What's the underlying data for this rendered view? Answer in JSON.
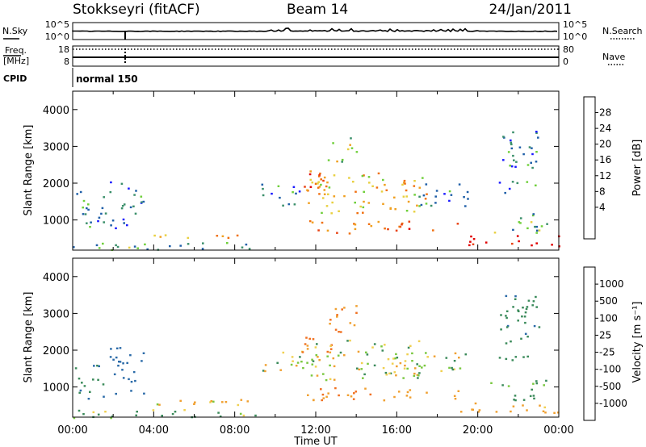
{
  "header": {
    "station": "Stokkseyri (fitACF)",
    "beam": "Beam 14",
    "date": "24/Jan/2011"
  },
  "panel_labels": {
    "nsky": "N.Sky",
    "nsearch": "N.Search",
    "freq_line1": "Freq.",
    "freq_line2": "[MHz]",
    "nave": "Nave",
    "cpid": "CPID",
    "cpid_value": "normal 150"
  },
  "noise_axis": {
    "left_ticks": [
      "10^5",
      "10^0"
    ],
    "right_ticks": [
      "10^5",
      "10^0"
    ]
  },
  "freq_axis": {
    "left_ticks": [
      "18",
      "8"
    ],
    "right_ticks": [
      "80",
      "0"
    ]
  },
  "x_axis": {
    "label": "Time UT",
    "ticks": [
      "00:00",
      "04:00",
      "08:00",
      "12:00",
      "16:00",
      "20:00",
      "00:00"
    ]
  },
  "y_axis": {
    "label": "Slant Range [km]",
    "ticks": [
      "1000",
      "2000",
      "3000",
      "4000"
    ]
  },
  "power_scale": {
    "label": "Power [dB]",
    "ticks": [
      "4",
      "8",
      "12",
      "16",
      "20",
      "24",
      "28"
    ],
    "colors": [
      "#1a1aff",
      "#1f5fa8",
      "#3a8f6a",
      "#6fcf3a",
      "#e8d040",
      "#f0a020",
      "#f07010",
      "#e84010",
      "#e00000"
    ]
  },
  "velocity_scale": {
    "label": "Velocity [m s⁻¹]",
    "ticks": [
      "1000",
      "500",
      "100",
      "25",
      "-25",
      "-100",
      "-500",
      "-1000"
    ],
    "colors": [
      "#1a3a9a",
      "#2a6aa8",
      "#3a8a5a",
      "#7ac840",
      "#c8c8c8",
      "#f0d050",
      "#f0a030",
      "#f07020",
      "#e00000"
    ]
  },
  "chart_data": [
    {
      "type": "heatmap",
      "title": "Power",
      "xlabel": "Time UT",
      "ylabel": "Slant Range [km]",
      "xlim": [
        "00:00",
        "24:00"
      ],
      "ylim": [
        180,
        4500
      ],
      "colorbar": {
        "label": "Power [dB]",
        "range": [
          0,
          30
        ]
      },
      "regions": [
        {
          "t": [
            0.1,
            1.6
          ],
          "r": [
            700,
            1800
          ],
          "value": 8
        },
        {
          "t": [
            1.8,
            3.5
          ],
          "r": [
            800,
            2100
          ],
          "value": 6
        },
        {
          "t": [
            0.0,
            9.0
          ],
          "r": [
            180,
            400
          ],
          "value": 10
        },
        {
          "t": [
            4.0,
            9.0
          ],
          "r": [
            520,
            700
          ],
          "value": 18
        },
        {
          "t": [
            9.3,
            11.4
          ],
          "r": [
            1400,
            2000
          ],
          "value": 7
        },
        {
          "t": [
            11.2,
            12.8
          ],
          "r": [
            1700,
            2400
          ],
          "value": 24
        },
        {
          "t": [
            11.5,
            17.5
          ],
          "r": [
            1200,
            2300
          ],
          "value": 17
        },
        {
          "t": [
            12.5,
            14.0
          ],
          "r": [
            2500,
            3300
          ],
          "value": 12
        },
        {
          "t": [
            11.5,
            16.5
          ],
          "r": [
            650,
            1000
          ],
          "value": 22
        },
        {
          "t": [
            16.0,
            19.0
          ],
          "r": [
            700,
            1000
          ],
          "value": 24
        },
        {
          "t": [
            17.0,
            19.5
          ],
          "r": [
            1400,
            2000
          ],
          "value": 6
        },
        {
          "t": [
            19.0,
            24.0
          ],
          "r": [
            300,
            600
          ],
          "value": 28
        },
        {
          "t": [
            20.5,
            23.5
          ],
          "r": [
            650,
            1200
          ],
          "value": 10
        },
        {
          "t": [
            21.0,
            23.0
          ],
          "r": [
            1700,
            3500
          ],
          "value": 6
        }
      ]
    },
    {
      "type": "heatmap",
      "title": "Velocity",
      "xlabel": "Time UT",
      "ylabel": "Slant Range [km]",
      "xlim": [
        "00:00",
        "24:00"
      ],
      "ylim": [
        180,
        4500
      ],
      "colorbar": {
        "label": "Velocity [m s⁻¹]",
        "range": [
          -1000,
          1000
        ]
      },
      "regions": [
        {
          "t": [
            0.1,
            1.6
          ],
          "r": [
            700,
            1800
          ],
          "value": 300
        },
        {
          "t": [
            1.8,
            3.5
          ],
          "r": [
            800,
            2100
          ],
          "value": 500
        },
        {
          "t": [
            0.0,
            9.0
          ],
          "r": [
            180,
            400
          ],
          "value": 60
        },
        {
          "t": [
            4.0,
            9.0
          ],
          "r": [
            520,
            700
          ],
          "value": -80
        },
        {
          "t": [
            9.3,
            11.4
          ],
          "r": [
            1400,
            2000
          ],
          "value": 0
        },
        {
          "t": [
            11.2,
            12.8
          ],
          "r": [
            1700,
            2400
          ],
          "value": -400
        },
        {
          "t": [
            11.5,
            17.5
          ],
          "r": [
            1200,
            2300
          ],
          "value": 0
        },
        {
          "t": [
            12.5,
            14.0
          ],
          "r": [
            2500,
            3300
          ],
          "value": -300
        },
        {
          "t": [
            11.5,
            16.5
          ],
          "r": [
            650,
            1000
          ],
          "value": -300
        },
        {
          "t": [
            16.0,
            19.0
          ],
          "r": [
            700,
            1000
          ],
          "value": -200
        },
        {
          "t": [
            17.0,
            19.5
          ],
          "r": [
            1400,
            2000
          ],
          "value": 0
        },
        {
          "t": [
            19.0,
            24.0
          ],
          "r": [
            300,
            600
          ],
          "value": -150
        },
        {
          "t": [
            20.5,
            23.5
          ],
          "r": [
            650,
            1200
          ],
          "value": 150
        },
        {
          "t": [
            21.0,
            23.0
          ],
          "r": [
            1700,
            3500
          ],
          "value": 200
        }
      ]
    }
  ]
}
